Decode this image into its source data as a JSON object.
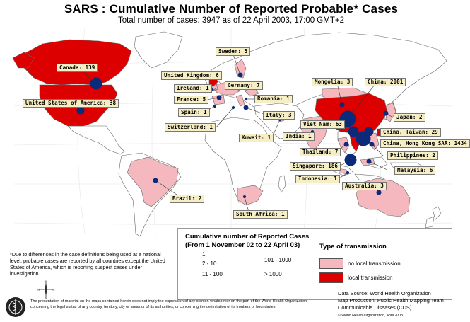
{
  "header": {
    "title": "SARS : Cumulative Number of Reported Probable* Cases",
    "subtitle": "Total number of cases: 3947 as of 22 April 2003, 17:00 GMT+2"
  },
  "countries": [
    {
      "label": "Canada: 139",
      "cases": 139,
      "transmission": "local"
    },
    {
      "label": "United States of America: 38",
      "cases": 38,
      "transmission": "local"
    },
    {
      "label": "Brazil: 2",
      "cases": 2,
      "transmission": "none"
    },
    {
      "label": "United Kingdom: 6",
      "cases": 6,
      "transmission": "local"
    },
    {
      "label": "Ireland: 1",
      "cases": 1,
      "transmission": "none"
    },
    {
      "label": "France: 5",
      "cases": 5,
      "transmission": "none"
    },
    {
      "label": "Spain: 1",
      "cases": 1,
      "transmission": "none"
    },
    {
      "label": "Switzerland: 1",
      "cases": 1,
      "transmission": "none"
    },
    {
      "label": "Sweden: 3",
      "cases": 3,
      "transmission": "none"
    },
    {
      "label": "Germany: 7",
      "cases": 7,
      "transmission": "none"
    },
    {
      "label": "Romania: 1",
      "cases": 1,
      "transmission": "none"
    },
    {
      "label": "Italy: 3",
      "cases": 3,
      "transmission": "none"
    },
    {
      "label": "Kuwait: 1",
      "cases": 1,
      "transmission": "none"
    },
    {
      "label": "India: 1",
      "cases": 1,
      "transmission": "none"
    },
    {
      "label": "Mongolia: 3",
      "cases": 3,
      "transmission": "none"
    },
    {
      "label": "China: 2001",
      "cases": 2001,
      "transmission": "local"
    },
    {
      "label": "Viet Nam: 63",
      "cases": 63,
      "transmission": "local"
    },
    {
      "label": "Japan: 2",
      "cases": 2,
      "transmission": "none"
    },
    {
      "label": "China, Taiwan: 29",
      "cases": 29,
      "transmission": "local"
    },
    {
      "label": "China, Hong Kong SAR: 1434",
      "cases": 1434,
      "transmission": "local"
    },
    {
      "label": "Thailand: 7",
      "cases": 7,
      "transmission": "none"
    },
    {
      "label": "Philippines: 2",
      "cases": 2,
      "transmission": "none"
    },
    {
      "label": "Singapore: 186",
      "cases": 186,
      "transmission": "local"
    },
    {
      "label": "Malaysia: 6",
      "cases": 6,
      "transmission": "none"
    },
    {
      "label": "Indonesia: 1",
      "cases": 1,
      "transmission": "none"
    },
    {
      "label": "Australia: 3",
      "cases": 3,
      "transmission": "none"
    },
    {
      "label": "South Africa: 1",
      "cases": 1,
      "transmission": "none"
    }
  ],
  "legend": {
    "title_line1": "Cumulative number of Reported Cases",
    "title_line2": "(From 1 November 02 to 22 April 03)",
    "sizes": [
      "1",
      "2 - 10",
      "11 - 100",
      "101 - 1000",
      "> 1000"
    ],
    "transmission_title": "Type of transmission",
    "no_local": "no local transmission",
    "local": "local transmission"
  },
  "footnote": "*Due to differences in the case definitions being used at a national level, probable cases are reported by all countries except the United States of America, which is reporting suspect cases under investigation.",
  "disclaimer": "The presentation of material on the maps contained herein does not imply the expression of any opinion whatsoever on the part of the World Health Organization concerning the legal status of any country, territory, city or areas or of its authorities, or concerning the delimitation of its frontiers or boundaries.",
  "credits": {
    "line1": "Data Source: World Health Organization",
    "line2": "Map Production: Public Health Mapping Team",
    "line3": "Communicable Diseases (CDS)",
    "copyright": "© World Health Organization,  April 2003"
  },
  "compass": {
    "n": "N",
    "e": "E",
    "s": "S",
    "w": "W"
  },
  "colors": {
    "local": "#dd0000",
    "no_local": "#f5b8be",
    "land": "#ffffff",
    "ocean": "#ffffff",
    "bubble": "#0c2a7a",
    "label_bg": "#f6eec4"
  }
}
